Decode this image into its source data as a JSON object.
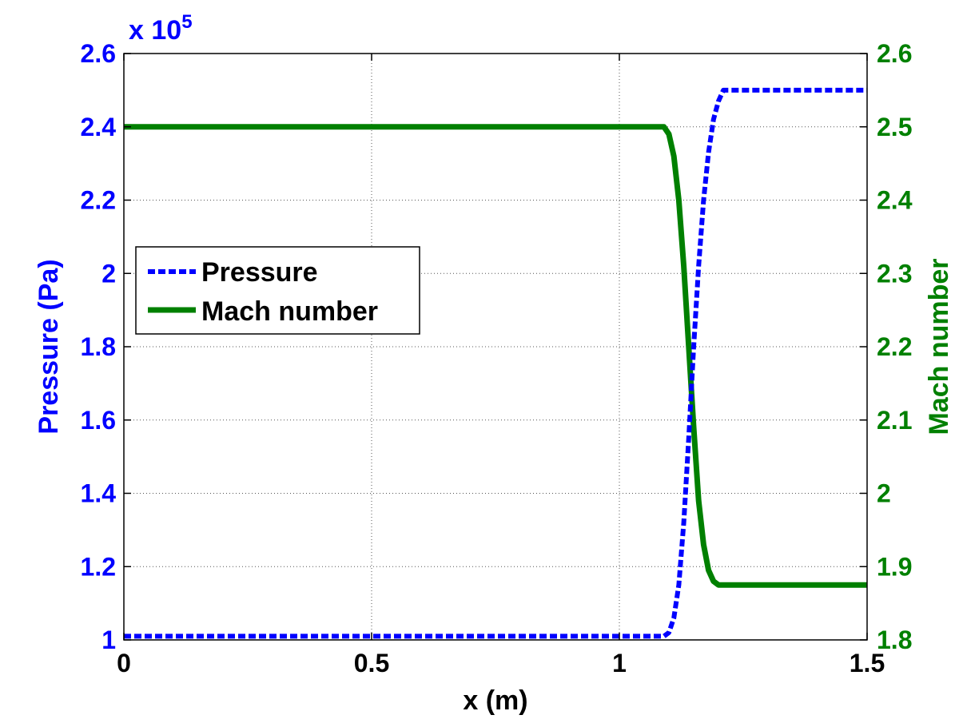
{
  "chart_data": {
    "type": "line",
    "xlabel": "x (m)",
    "ylabel_left": "Pressure (Pa)",
    "ylabel_right": "Mach number",
    "left_exponent_label": "x 10",
    "left_exponent_power": "5",
    "xlim": [
      0,
      1.5
    ],
    "ylim_left": [
      1.0,
      2.6
    ],
    "ylim_right": [
      1.8,
      2.6
    ],
    "x_ticks": [
      "0",
      "0.5",
      "1",
      "1.5"
    ],
    "y_left_ticks": [
      "1",
      "1.2",
      "1.4",
      "1.6",
      "1.8",
      "2",
      "2.2",
      "2.4",
      "2.6"
    ],
    "y_right_ticks": [
      "1.8",
      "1.9",
      "2",
      "2.1",
      "2.2",
      "2.3",
      "2.4",
      "2.5",
      "2.6"
    ],
    "grid": true,
    "legend_position": "middle-left",
    "series": [
      {
        "name": "Pressure",
        "axis": "left",
        "color": "#0000ff",
        "style": "dashed",
        "x": [
          0,
          1.09,
          1.1,
          1.11,
          1.12,
          1.13,
          1.14,
          1.15,
          1.16,
          1.17,
          1.18,
          1.19,
          1.2,
          1.21,
          1.5
        ],
        "y": [
          1.01,
          1.01,
          1.02,
          1.06,
          1.15,
          1.32,
          1.55,
          1.8,
          2.02,
          2.2,
          2.33,
          2.42,
          2.47,
          2.5,
          2.5
        ]
      },
      {
        "name": "Mach number",
        "axis": "right",
        "color": "#008000",
        "style": "solid",
        "x": [
          0,
          1.09,
          1.1,
          1.11,
          1.12,
          1.13,
          1.14,
          1.15,
          1.16,
          1.17,
          1.18,
          1.19,
          1.2,
          1.5
        ],
        "y": [
          2.5,
          2.5,
          2.49,
          2.46,
          2.4,
          2.31,
          2.2,
          2.09,
          1.99,
          1.93,
          1.895,
          1.88,
          1.875,
          1.875
        ]
      }
    ]
  }
}
